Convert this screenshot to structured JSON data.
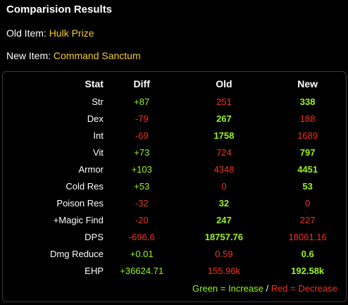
{
  "title": "Comparision Results",
  "old_item": {
    "label": "Old Item: ",
    "name": "Hulk Prize"
  },
  "new_item": {
    "label": "New Item: ",
    "name": "Command Sanctum"
  },
  "table": {
    "headers": {
      "stat": "Stat",
      "diff": "Diff",
      "old": "Old",
      "new": "New"
    },
    "rows": [
      {
        "stat": "Str",
        "diff": "+87",
        "diff_sign": "pos",
        "old": "251",
        "old_sign": "neg",
        "new": "338",
        "new_sign": "pos"
      },
      {
        "stat": "Dex",
        "diff": "-79",
        "diff_sign": "neg",
        "old": "267",
        "old_sign": "pos",
        "new": "188",
        "new_sign": "neg"
      },
      {
        "stat": "Int",
        "diff": "-69",
        "diff_sign": "neg",
        "old": "1758",
        "old_sign": "pos",
        "new": "1689",
        "new_sign": "neg"
      },
      {
        "stat": "Vit",
        "diff": "+73",
        "diff_sign": "pos",
        "old": "724",
        "old_sign": "neg",
        "new": "797",
        "new_sign": "pos"
      },
      {
        "stat": "Armor",
        "diff": "+103",
        "diff_sign": "pos",
        "old": "4348",
        "old_sign": "neg",
        "new": "4451",
        "new_sign": "pos"
      },
      {
        "stat": "Cold Res",
        "diff": "+53",
        "diff_sign": "pos",
        "old": "0",
        "old_sign": "neg",
        "new": "53",
        "new_sign": "pos"
      },
      {
        "stat": "Poison Res",
        "diff": "-32",
        "diff_sign": "neg",
        "old": "32",
        "old_sign": "pos",
        "new": "0",
        "new_sign": "neg"
      },
      {
        "stat": "+Magic Find",
        "diff": "-20",
        "diff_sign": "neg",
        "old": "247",
        "old_sign": "pos",
        "new": "227",
        "new_sign": "neg"
      },
      {
        "stat": "DPS",
        "diff": "-696.6",
        "diff_sign": "neg",
        "old": "18757.76",
        "old_sign": "pos",
        "new": "18061.16",
        "new_sign": "neg"
      },
      {
        "stat": "Dmg Reduce",
        "diff": "+0.01",
        "diff_sign": "pos",
        "old": "0.59",
        "old_sign": "neg",
        "new": "0.6",
        "new_sign": "pos"
      },
      {
        "stat": "EHP",
        "diff": "+36624.71",
        "diff_sign": "pos",
        "old": "155.96k",
        "old_sign": "neg",
        "new": "192.58k",
        "new_sign": "pos"
      }
    ]
  },
  "legend": {
    "green_text": "Green = Increase",
    "separator": " / ",
    "red_text": "Red = Decrease"
  },
  "colors": {
    "increase": "#9cf518",
    "decrease": "#ee3322",
    "item_name": "#f4cb2b"
  }
}
